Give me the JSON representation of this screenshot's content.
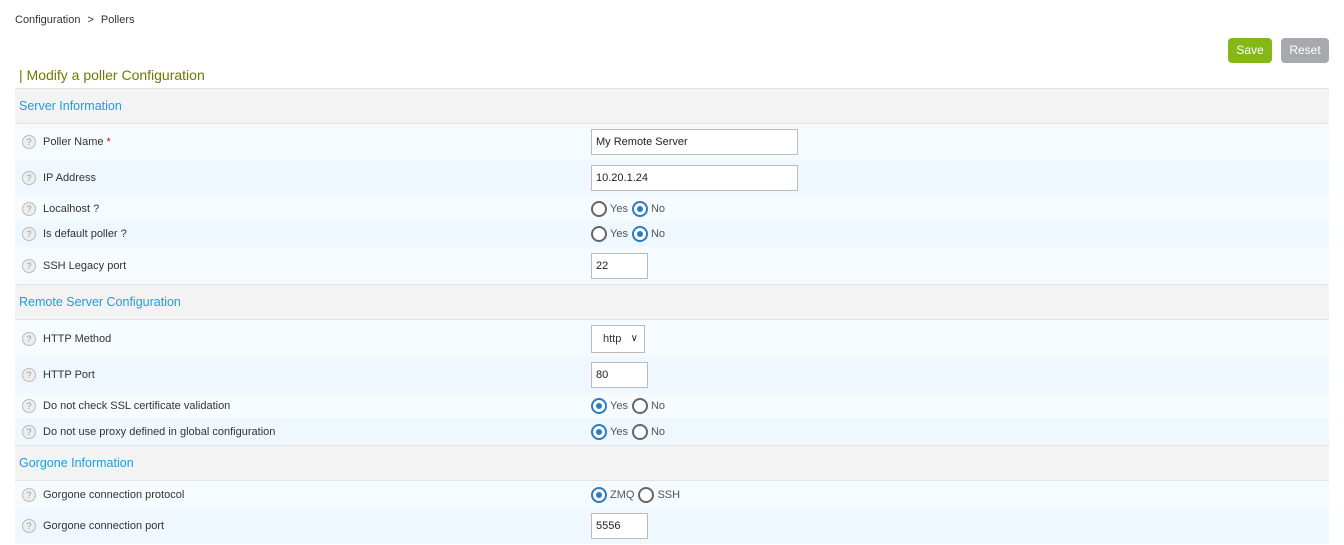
{
  "breadcrumb": {
    "items": [
      "Configuration",
      "Pollers"
    ],
    "separator": ">"
  },
  "buttons": {
    "save": "Save",
    "reset": "Reset"
  },
  "colors": {
    "save": "#85b817",
    "reset": "#a7a9ac",
    "section_title": "#1a9ee0",
    "page_title": "#6d7a00",
    "radio_selected": "#2c7bc2"
  },
  "page_title": "| Modify a poller Configuration",
  "help_icon": "?",
  "sections": [
    {
      "title": "Server Information",
      "rows": [
        {
          "label": "Poller Name",
          "required": "*",
          "type": "text",
          "value": "My Remote Server",
          "h": 36,
          "w": 207
        },
        {
          "label": "IP Address",
          "type": "text",
          "value": "10.20.1.24",
          "h": 36,
          "w": 207
        },
        {
          "label": "Localhost ?",
          "type": "radio",
          "options": [
            "Yes",
            "No"
          ],
          "selected": "No",
          "h": 25
        },
        {
          "label": "Is default poller ?",
          "type": "radio",
          "options": [
            "Yes",
            "No"
          ],
          "selected": "No",
          "h": 26
        },
        {
          "label": "SSH Legacy port",
          "type": "text",
          "value": "22",
          "h": 37,
          "w": 57
        }
      ]
    },
    {
      "title": "Remote Server Configuration",
      "rows": [
        {
          "label": "HTTP Method",
          "type": "select",
          "value": "http",
          "h": 37
        },
        {
          "label": "HTTP Port",
          "type": "text",
          "value": "80",
          "h": 36,
          "w": 57
        },
        {
          "label": "Do not check SSL certificate validation",
          "type": "radio",
          "options": [
            "Yes",
            "No"
          ],
          "selected": "Yes",
          "h": 26
        },
        {
          "label": "Do not use proxy defined in global configuration",
          "type": "radio",
          "options": [
            "Yes",
            "No"
          ],
          "selected": "Yes",
          "h": 26
        }
      ]
    },
    {
      "title": "Gorgone Information",
      "rows": [
        {
          "label": "Gorgone connection protocol",
          "type": "radio",
          "options": [
            "ZMQ",
            "SSH"
          ],
          "selected": "ZMQ",
          "h": 27
        },
        {
          "label": "Gorgone connection port",
          "type": "text",
          "value": "5556",
          "h": 36,
          "w": 57
        }
      ]
    }
  ]
}
